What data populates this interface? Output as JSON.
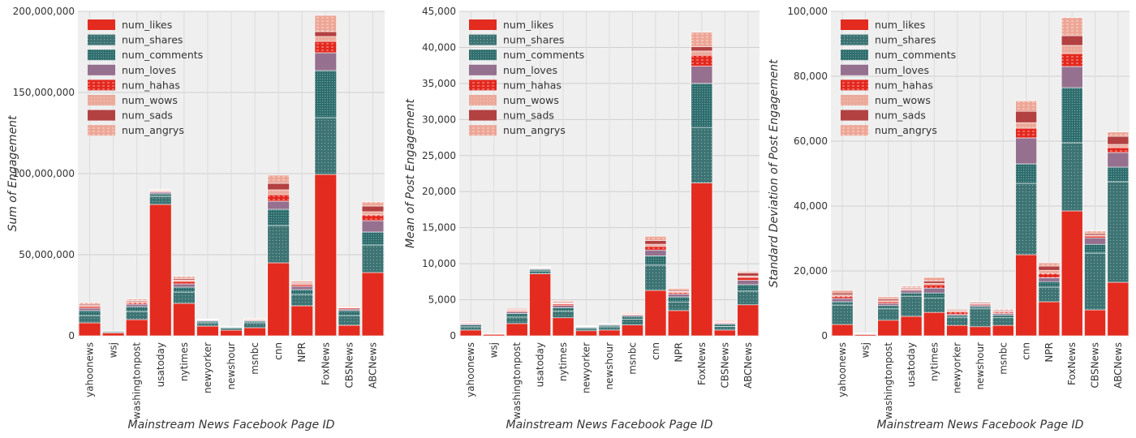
{
  "chart_data": [
    {
      "type": "bar",
      "stacked": true,
      "xlabel": "Mainstream News Facebook Page ID",
      "ylabel": "Sum of Engagement",
      "ylim": [
        0,
        200000000
      ],
      "yticks": [
        0,
        50000000,
        100000000,
        150000000,
        200000000
      ],
      "ytick_labels": [
        "0",
        "50,000,000",
        "100,000,000",
        "150,000,000",
        "200,000,000"
      ],
      "grid": true,
      "legend": "top-left",
      "categories": [
        "yahoonews",
        "wsj",
        "washingtonpost",
        "usatoday",
        "nytimes",
        "newyorker",
        "newshour",
        "msnbc",
        "cnn",
        "NPR",
        "FoxNews",
        "CBSNews",
        "ABCNews"
      ],
      "series": [
        {
          "name": "num_likes",
          "values": [
            8000000,
            1800000,
            10000000,
            81000000,
            20000000,
            6000000,
            3500000,
            5000000,
            45000000,
            18500000,
            99500000,
            6500000,
            39000000
          ]
        },
        {
          "name": "num_shares",
          "values": [
            4500000,
            600000,
            5000000,
            5000000,
            7000000,
            2000000,
            1300000,
            3000000,
            23000000,
            7000000,
            35000000,
            6000000,
            17000000
          ]
        },
        {
          "name": "num_comments",
          "values": [
            3000000,
            400000,
            3000000,
            1500000,
            3000000,
            1000000,
            500000,
            1000000,
            10000000,
            3000000,
            29000000,
            3000000,
            8000000
          ]
        },
        {
          "name": "num_loves",
          "values": [
            1500000,
            100000,
            1500000,
            1000000,
            2000000,
            500000,
            200000,
            500000,
            5000000,
            2000000,
            11000000,
            1000000,
            7000000
          ]
        },
        {
          "name": "num_hahas",
          "values": [
            1000000,
            50000,
            1000000,
            500000,
            1500000,
            300000,
            100000,
            400000,
            4000000,
            1000000,
            7000000,
            700000,
            3500000
          ]
        },
        {
          "name": "num_wows",
          "values": [
            700000,
            30000,
            600000,
            400000,
            800000,
            200000,
            100000,
            200000,
            3000000,
            700000,
            3000000,
            400000,
            2000000
          ]
        },
        {
          "name": "num_sads",
          "values": [
            700000,
            20000,
            600000,
            300000,
            800000,
            200000,
            100000,
            200000,
            4000000,
            600000,
            3000000,
            300000,
            3500000
          ]
        },
        {
          "name": "num_angrys",
          "values": [
            1000000,
            30000,
            1000000,
            400000,
            1500000,
            200000,
            100000,
            400000,
            5000000,
            900000,
            10000000,
            500000,
            2500000
          ]
        }
      ]
    },
    {
      "type": "bar",
      "stacked": true,
      "xlabel": "Mainstream News Facebook Page ID",
      "ylabel": "Mean of Post Engagement",
      "ylim": [
        0,
        45000
      ],
      "yticks": [
        0,
        5000,
        10000,
        15000,
        20000,
        25000,
        30000,
        35000,
        40000,
        45000
      ],
      "ytick_labels": [
        "0",
        "5,000",
        "10,000",
        "15,000",
        "20,000",
        "25,000",
        "30,000",
        "35,000",
        "40,000",
        "45,000"
      ],
      "grid": true,
      "legend": "top-left",
      "categories": [
        "yahoonews",
        "wsj",
        "washingtonpost",
        "usatoday",
        "nytimes",
        "newyorker",
        "newshour",
        "msnbc",
        "cnn",
        "NPR",
        "FoxNews",
        "CBSNews",
        "ABCNews"
      ],
      "series": [
        {
          "name": "num_likes",
          "values": [
            800,
            200,
            1700,
            8600,
            2500,
            700,
            800,
            1500,
            6300,
            3500,
            21200,
            800,
            4300
          ]
        },
        {
          "name": "num_shares",
          "values": [
            450,
            50,
            900,
            400,
            900,
            300,
            450,
            800,
            3500,
            1200,
            7700,
            500,
            1900
          ]
        },
        {
          "name": "num_comments",
          "values": [
            250,
            30,
            500,
            200,
            500,
            150,
            200,
            400,
            1300,
            700,
            6100,
            300,
            900
          ]
        },
        {
          "name": "num_loves",
          "values": [
            150,
            10,
            200,
            100,
            300,
            70,
            100,
            150,
            800,
            400,
            2400,
            150,
            600
          ]
        },
        {
          "name": "num_hahas",
          "values": [
            100,
            5,
            150,
            80,
            200,
            60,
            50,
            100,
            500,
            200,
            1500,
            100,
            400
          ]
        },
        {
          "name": "num_wows",
          "values": [
            70,
            5,
            100,
            50,
            100,
            40,
            30,
            60,
            300,
            150,
            600,
            60,
            200
          ]
        },
        {
          "name": "num_sads",
          "values": [
            70,
            5,
            100,
            50,
            100,
            30,
            30,
            60,
            500,
            150,
            600,
            50,
            400
          ]
        },
        {
          "name": "num_angrys",
          "values": [
            110,
            5,
            150,
            70,
            200,
            50,
            40,
            130,
            600,
            250,
            2000,
            140,
            200
          ]
        }
      ]
    },
    {
      "type": "bar",
      "stacked": true,
      "xlabel": "Mainstream News Facebook Page ID",
      "ylabel": "Standard Deviation of Post Engagement",
      "ylim": [
        0,
        100000
      ],
      "yticks": [
        0,
        20000,
        40000,
        60000,
        80000,
        100000
      ],
      "ytick_labels": [
        "0",
        "20,000",
        "40,000",
        "60,000",
        "80,000",
        "100,000"
      ],
      "grid": true,
      "legend": "top-left",
      "categories": [
        "yahoonews",
        "wsj",
        "washingtonpost",
        "usatoday",
        "nytimes",
        "newyorker",
        "newshour",
        "msnbc",
        "cnn",
        "NPR",
        "FoxNews",
        "CBSNews",
        "ABCNews"
      ],
      "series": [
        {
          "name": "num_likes",
          "values": [
            3500,
            400,
            4800,
            6000,
            7200,
            3200,
            2800,
            3200,
            25000,
            10500,
            38500,
            8000,
            16500
          ]
        },
        {
          "name": "num_shares",
          "values": [
            6000,
            200,
            3500,
            6200,
            4500,
            2500,
            5500,
            2500,
            22000,
            4500,
            21000,
            17500,
            31000
          ]
        },
        {
          "name": "num_comments",
          "values": [
            1000,
            100,
            1000,
            1000,
            1500,
            500,
            700,
            700,
            6000,
            1700,
            17000,
            2700,
            4500
          ]
        },
        {
          "name": "num_loves",
          "values": [
            1000,
            50,
            700,
            800,
            1500,
            400,
            500,
            500,
            8000,
            1200,
            6500,
            2000,
            4500
          ]
        },
        {
          "name": "num_hahas",
          "values": [
            700,
            30,
            500,
            300,
            1000,
            800,
            300,
            400,
            3000,
            1300,
            4000,
            500,
            1500
          ]
        },
        {
          "name": "num_wows",
          "values": [
            400,
            30,
            300,
            200,
            500,
            200,
            200,
            200,
            1700,
            1000,
            2500,
            300,
            1000
          ]
        },
        {
          "name": "num_sads",
          "values": [
            600,
            30,
            500,
            300,
            700,
            300,
            300,
            300,
            3500,
            1300,
            3000,
            500,
            2500
          ]
        },
        {
          "name": "num_angrys",
          "values": [
            800,
            30,
            700,
            500,
            1100,
            300,
            200,
            400,
            3200,
            1000,
            5600,
            800,
            1300
          ]
        }
      ]
    }
  ],
  "colors": {
    "num_likes": "#e32b1f",
    "num_shares": "#3e7474",
    "num_comments": "#2f6e6e",
    "num_loves": "#96708f",
    "num_hahas": "#e3281e",
    "num_wows": "#eba99a",
    "num_sads": "#b34142",
    "num_angrys": "#eda696"
  }
}
